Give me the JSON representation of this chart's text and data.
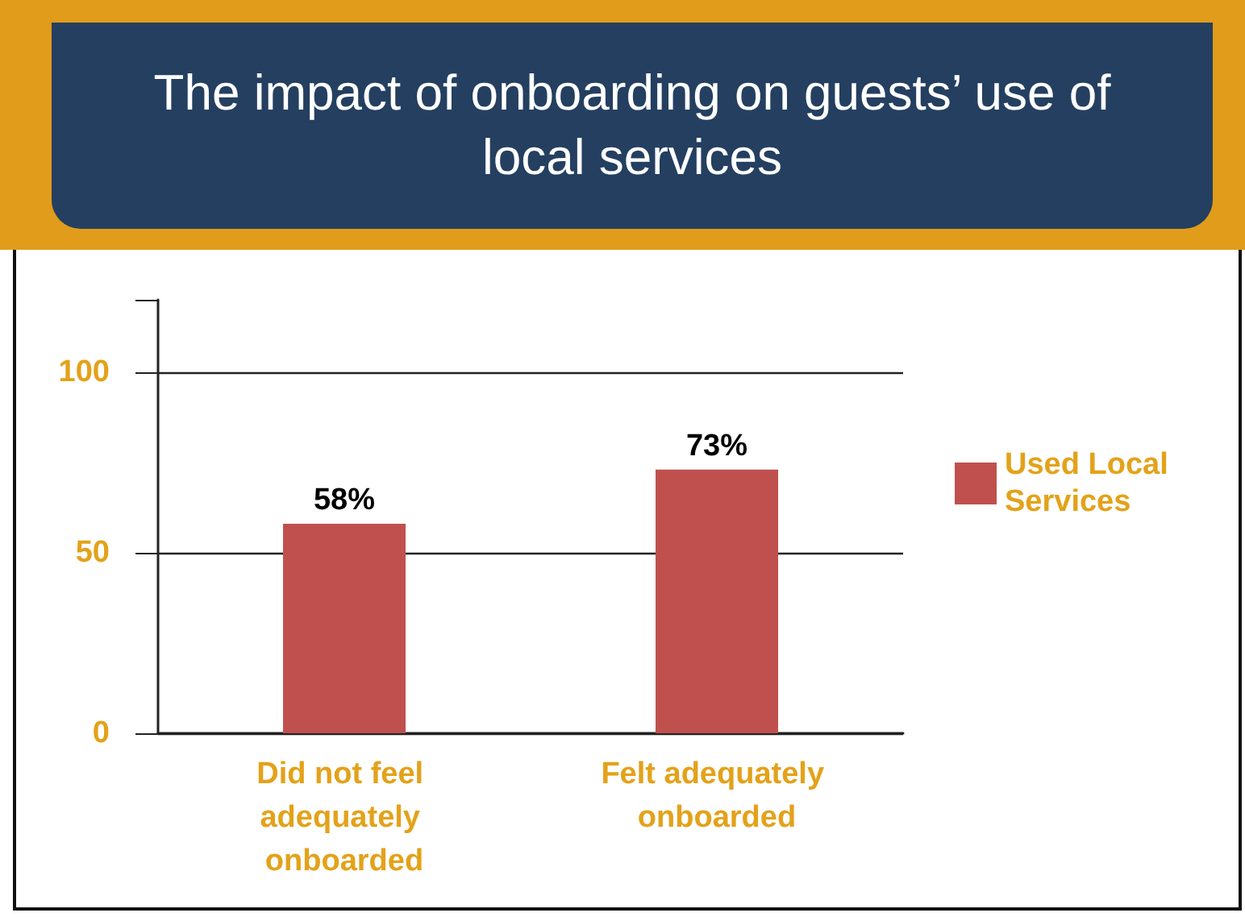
{
  "chart_data": {
    "type": "bar",
    "title": "The impact of onboarding on guests’ use of local services",
    "categories": [
      "Did not feel adequately onboarded",
      "Felt adequately onboarded"
    ],
    "series": [
      {
        "name": "Used Local Services",
        "color": "#c0504d",
        "values": [
          58,
          73
        ]
      }
    ],
    "value_labels": [
      "58%",
      "73%"
    ],
    "ylim": [
      0,
      120
    ],
    "yticks": [
      0,
      50,
      100
    ],
    "grid": "y",
    "legend": "right"
  }
}
